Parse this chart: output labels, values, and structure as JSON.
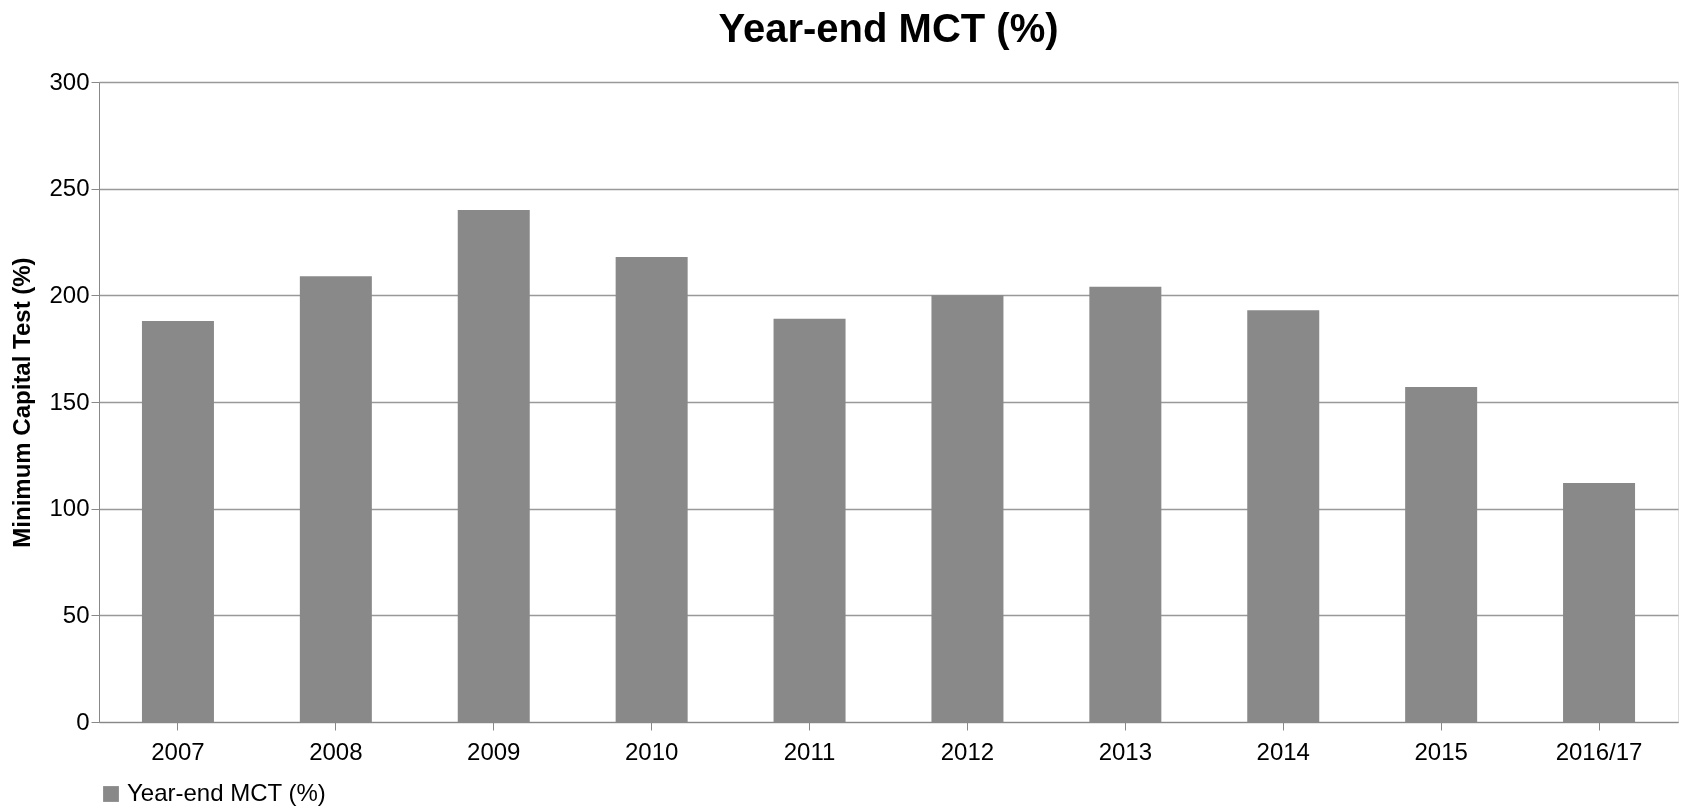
{
  "chart_data": {
    "type": "bar",
    "title": "Year-end MCT (%)",
    "ylabel": "Minimum Capital Test (%)",
    "categories": [
      "2007",
      "2008",
      "2009",
      "2010",
      "2011",
      "2012",
      "2013",
      "2014",
      "2015",
      "2016/17"
    ],
    "series": [
      {
        "name": "Year-end MCT (%)",
        "color": "#898989",
        "values": [
          188,
          209,
          240,
          218,
          189,
          200,
          204,
          193,
          157,
          112
        ]
      }
    ],
    "ylim": [
      0,
      300
    ],
    "yticks": [
      0,
      50,
      100,
      150,
      200,
      250,
      300
    ],
    "grid": "y",
    "legend": "bottom"
  }
}
